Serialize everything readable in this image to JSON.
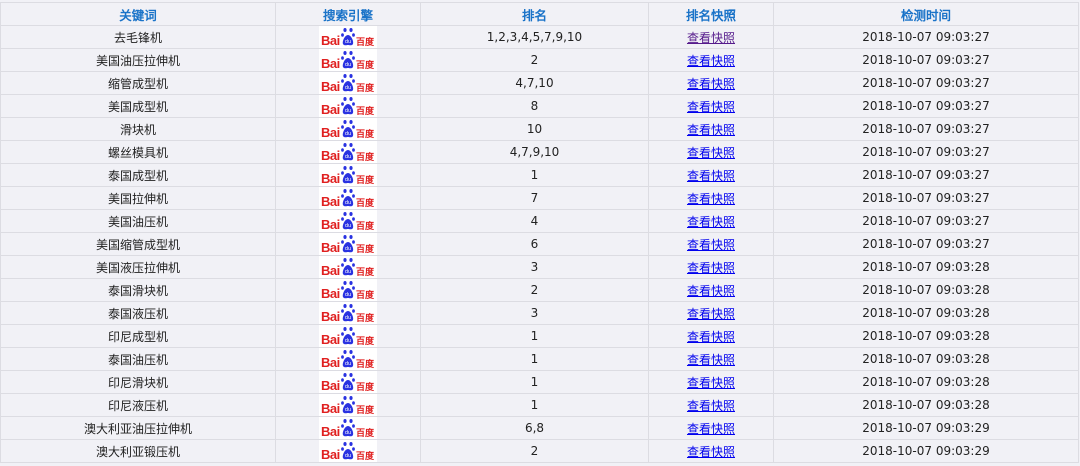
{
  "headers": [
    "关键词",
    "搜索引擎",
    "排名",
    "排名快照",
    "检测时间"
  ],
  "engine": {
    "name": "Baidu",
    "logo_text_latin": "Bai",
    "logo_text_cn": "百度",
    "logo_red": "#e02020",
    "logo_blue": "#2932e1"
  },
  "link_label": "查看快照",
  "rows": [
    {
      "keyword": "去毛锋机",
      "rank": "1,2,3,4,5,7,9,10",
      "time": "2018-10-07 09:03:27",
      "visited": true
    },
    {
      "keyword": "美国油压拉伸机",
      "rank": "2",
      "time": "2018-10-07 09:03:27"
    },
    {
      "keyword": "缩管成型机",
      "rank": "4,7,10",
      "time": "2018-10-07 09:03:27"
    },
    {
      "keyword": "美国成型机",
      "rank": "8",
      "time": "2018-10-07 09:03:27"
    },
    {
      "keyword": "滑块机",
      "rank": "10",
      "time": "2018-10-07 09:03:27"
    },
    {
      "keyword": "螺丝模具机",
      "rank": "4,7,9,10",
      "time": "2018-10-07 09:03:27"
    },
    {
      "keyword": "泰国成型机",
      "rank": "1",
      "time": "2018-10-07 09:03:27"
    },
    {
      "keyword": "美国拉伸机",
      "rank": "7",
      "time": "2018-10-07 09:03:27"
    },
    {
      "keyword": "美国油压机",
      "rank": "4",
      "time": "2018-10-07 09:03:27"
    },
    {
      "keyword": "美国缩管成型机",
      "rank": "6",
      "time": "2018-10-07 09:03:27"
    },
    {
      "keyword": "美国液压拉伸机",
      "rank": "3",
      "time": "2018-10-07 09:03:28"
    },
    {
      "keyword": "泰国滑块机",
      "rank": "2",
      "time": "2018-10-07 09:03:28"
    },
    {
      "keyword": "泰国液压机",
      "rank": "3",
      "time": "2018-10-07 09:03:28"
    },
    {
      "keyword": "印尼成型机",
      "rank": "1",
      "time": "2018-10-07 09:03:28"
    },
    {
      "keyword": "泰国油压机",
      "rank": "1",
      "time": "2018-10-07 09:03:28"
    },
    {
      "keyword": "印尼滑块机",
      "rank": "1",
      "time": "2018-10-07 09:03:28"
    },
    {
      "keyword": "印尼液压机",
      "rank": "1",
      "time": "2018-10-07 09:03:28"
    },
    {
      "keyword": "澳大利亚油压拉伸机",
      "rank": "6,8",
      "time": "2018-10-07 09:03:29"
    },
    {
      "keyword": "澳大利亚锻压机",
      "rank": "2",
      "time": "2018-10-07 09:03:29"
    }
  ]
}
